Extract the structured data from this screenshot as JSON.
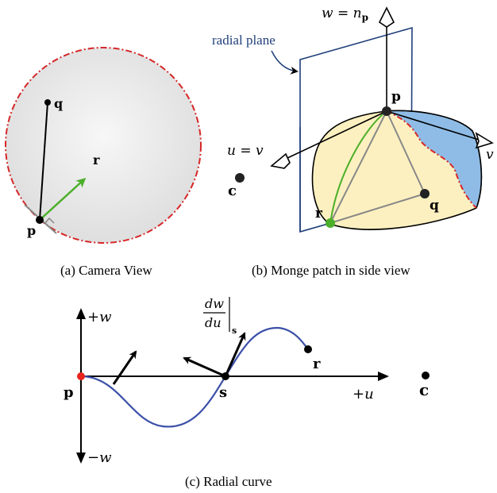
{
  "panel_a": {
    "caption": "(a)  Camera View",
    "labels": {
      "q": "q",
      "r": "r",
      "p": "p"
    },
    "colors": {
      "silhouette": "#d62728",
      "arrow": "#4caf2a",
      "sphere_fill": "#e4e4e4"
    }
  },
  "panel_b": {
    "caption": "(b)  Monge patch in side view",
    "radial_plane": "radial plane",
    "axis_w_prefix": "w = n",
    "axis_w_sub": "p",
    "axis_u": "u = v",
    "axis_v": "v",
    "labels": {
      "p": "p",
      "q": "q",
      "r": "r",
      "c": "c"
    },
    "colors": {
      "patch_fill": "#fdf0c0",
      "patch_shade": "#8fbce6",
      "plane": "#1f3f7a",
      "curve": "#4caf2a",
      "silhouette": "#d62728"
    }
  },
  "panel_c": {
    "caption": "(c)  Radial curve",
    "plus_w": "+w",
    "minus_w": "−w",
    "plus_u": "+u",
    "deriv_num": "dw",
    "deriv_den": "du",
    "deriv_sub": "s",
    "labels": {
      "p": "p",
      "s": "s",
      "r": "r",
      "c": "c"
    },
    "colors": {
      "curve": "#3b4fa8",
      "p_dot": "#e8241c"
    }
  }
}
